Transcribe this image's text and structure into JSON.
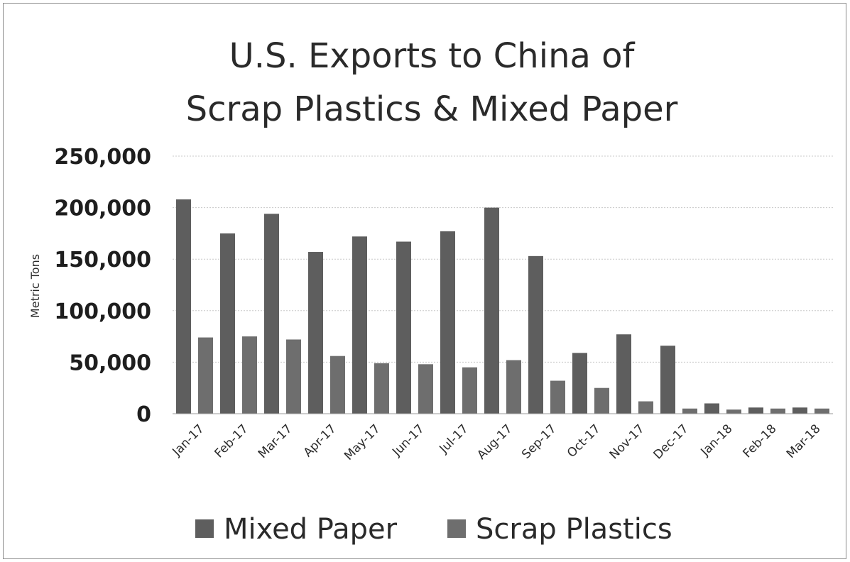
{
  "chart_data": {
    "type": "bar",
    "title": [
      "U.S. Exports to China of",
      "Scrap Plastics & Mixed Paper"
    ],
    "xlabel": "",
    "ylabel": "Metric Tons",
    "ylim": [
      0,
      250000
    ],
    "yticks": [
      0,
      50000,
      100000,
      150000,
      200000,
      250000
    ],
    "ytick_labels": [
      "0",
      "50,000",
      "100,000",
      "150,000",
      "200,000",
      "250,000"
    ],
    "grid": true,
    "legend_position": "bottom",
    "categories": [
      "Jan-17",
      "Feb-17",
      "Mar-17",
      "Apr-17",
      "May-17",
      "Jun-17",
      "Jul-17",
      "Aug-17",
      "Sep-17",
      "Oct-17",
      "Nov-17",
      "Dec-17",
      "Jan-18",
      "Feb-18",
      "Mar-18"
    ],
    "series": [
      {
        "name": "Mixed Paper",
        "color": "#5e5e5e",
        "values": [
          208000,
          175000,
          194000,
          157000,
          172000,
          167000,
          177000,
          200000,
          153000,
          59000,
          77000,
          66000,
          10000,
          6000,
          6000
        ]
      },
      {
        "name": "Scrap Plastics",
        "color": "#6e6e6e",
        "values": [
          74000,
          75000,
          72000,
          56000,
          49000,
          48000,
          45000,
          52000,
          32000,
          25000,
          12000,
          5000,
          4000,
          5000,
          5000
        ]
      }
    ]
  }
}
